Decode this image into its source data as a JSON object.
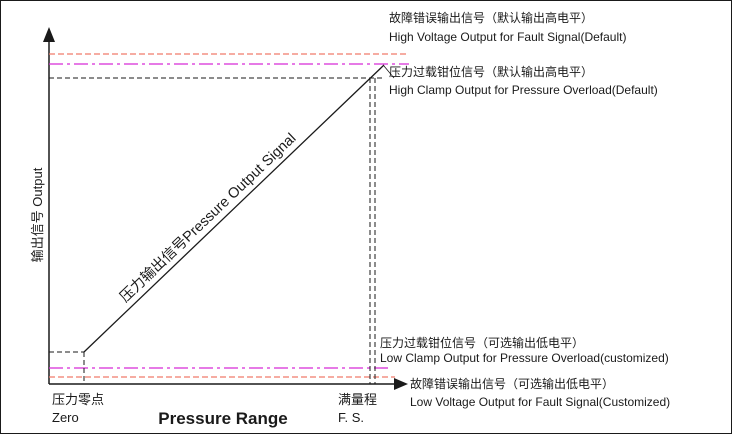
{
  "labels": {
    "fault_high_cn": "故障错误输出信号（默认输出高电平）",
    "fault_high_en": "High Voltage Output for Fault Signal(Default)",
    "clamp_high_cn": "压力过载钳位信号（默认输出高电平）",
    "clamp_high_en": "High Clamp Output for Pressure Overload(Default)",
    "clamp_low_cn": "压力过载钳位信号（可选输出低电平）",
    "clamp_low_en": "Low Clamp Output for Pressure Overload(customized)",
    "fault_low_cn": "故障错误输出信号（可选输出低电平）",
    "fault_low_en": "Low Voltage Output for Fault Signal(Customized)",
    "y_axis": "输出信号 Output",
    "signal_line": "压力输出信号Pressure Output Signal",
    "zero_cn": "压力零点",
    "zero_en": "Zero",
    "x_axis": "Pressure Range",
    "fs_cn": "满量程",
    "fs_en": "F. S."
  },
  "colors": {
    "axis": "#1a1a1a",
    "fault_level": "#f07a6a",
    "clamp_level": "#d62ad6",
    "guide": "#1a1a1a"
  }
}
